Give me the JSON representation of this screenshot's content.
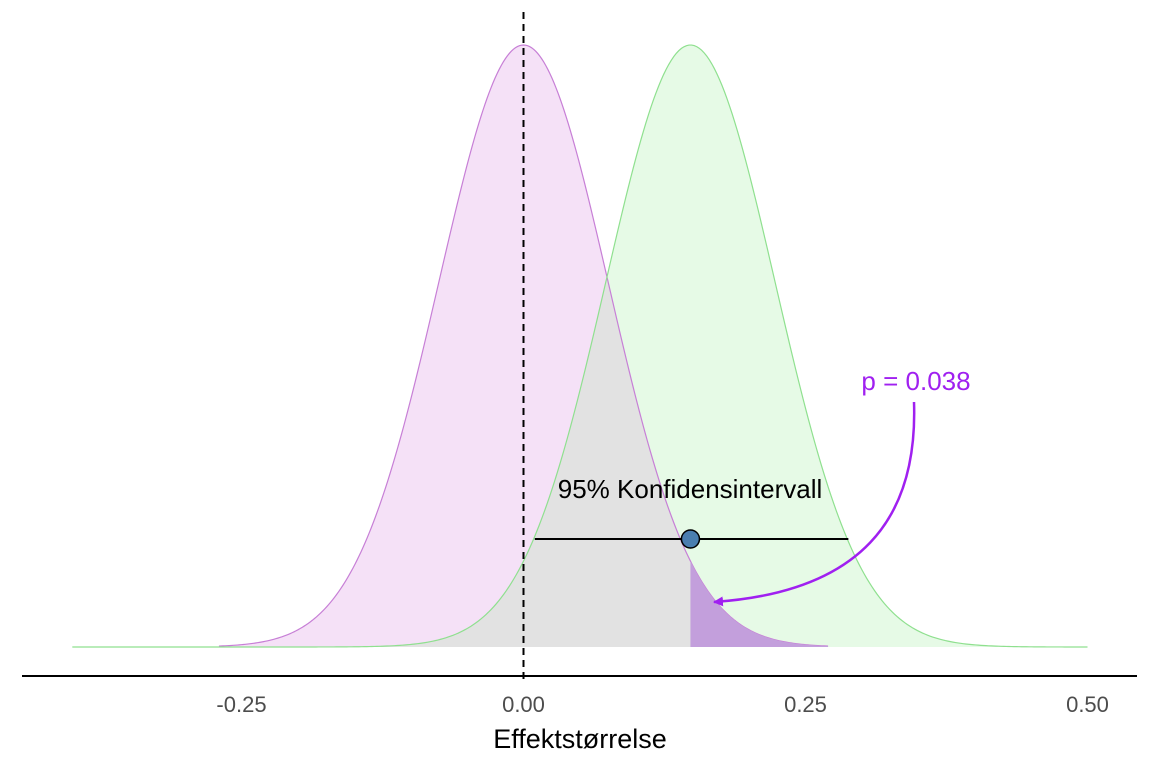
{
  "chart_data": {
    "type": "area",
    "xlabel": "Effektstørrelse",
    "xlim": [
      -0.44,
      0.54
    ],
    "x_ticks": [
      -0.25,
      0.0,
      0.25,
      0.5
    ],
    "x_tick_labels": [
      "-0.25",
      "0.00",
      "0.25",
      "0.50"
    ],
    "grid": false,
    "series": [
      {
        "mean": 0.0,
        "sd": 0.075,
        "x_from": -0.27,
        "x_to": 0.27,
        "fill": "#f5e1f7",
        "stroke": "#c77fd6"
      },
      {
        "mean": 0.148,
        "sd": 0.075,
        "x_from": -0.4,
        "x_to": 0.5,
        "fill": "#e6fae6",
        "stroke": "#8fe08f"
      }
    ],
    "overlap_fill": "#e2e2e2",
    "reference_line": {
      "x": 0.0,
      "style": "dashed"
    },
    "confidence_interval": {
      "label": "95% Konfidensintervall",
      "estimate": 0.148,
      "lower": 0.01,
      "upper": 0.288,
      "point_color": "#4a7eb0"
    },
    "p_value": {
      "label": "p =  0.038",
      "shaded_from": 0.148,
      "shaded_to": 0.27,
      "color": "#a020f0",
      "shade_fill": "#c39fdc"
    }
  }
}
